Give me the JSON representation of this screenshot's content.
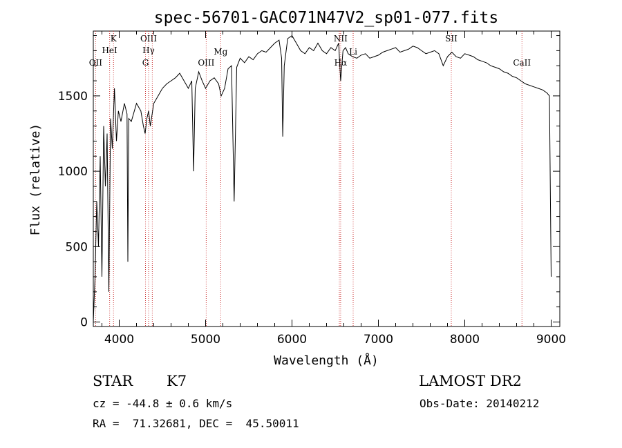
{
  "chart_data": {
    "type": "line",
    "title": "spec-56701-GAC071N47V2_sp01-077.fits",
    "xlabel": "Wavelength (Å)",
    "ylabel": "Flux (relative)",
    "xlim": [
      3700,
      9100
    ],
    "ylim": [
      -30,
      1930
    ],
    "xticks": [
      4000,
      5000,
      6000,
      7000,
      8000,
      9000
    ],
    "yticks": [
      0,
      500,
      1000,
      1500
    ],
    "grid": false,
    "series": [
      {
        "x": [
          3700,
          3720,
          3740,
          3760,
          3780,
          3800,
          3820,
          3840,
          3860,
          3880,
          3900,
          3920,
          3935,
          3945,
          3968,
          3990,
          4020,
          4060,
          4090,
          4100,
          4110,
          4140,
          4200,
          4250,
          4280,
          4300,
          4320,
          4340,
          4360,
          4400,
          4450,
          4500,
          4550,
          4600,
          4650,
          4700,
          4750,
          4800,
          4840,
          4861,
          4880,
          4920,
          4960,
          5000,
          5050,
          5100,
          5150,
          5180,
          5220,
          5260,
          5300,
          5330,
          5360,
          5400,
          5450,
          5500,
          5550,
          5600,
          5650,
          5700,
          5750,
          5800,
          5850,
          5880,
          5893,
          5910,
          5950,
          6000,
          6050,
          6100,
          6150,
          6200,
          6250,
          6300,
          6350,
          6400,
          6450,
          6500,
          6540,
          6563,
          6590,
          6620,
          6650,
          6700,
          6750,
          6800,
          6850,
          6900,
          6950,
          7000,
          7050,
          7100,
          7150,
          7200,
          7250,
          7300,
          7350,
          7400,
          7450,
          7500,
          7550,
          7600,
          7650,
          7700,
          7750,
          7800,
          7850,
          7900,
          7950,
          8000,
          8050,
          8100,
          8150,
          8200,
          8250,
          8300,
          8350,
          8400,
          8450,
          8500,
          8550,
          8600,
          8650,
          8700,
          8750,
          8800,
          8850,
          8900,
          8950,
          8980,
          9000
        ],
        "y": [
          0,
          300,
          800,
          500,
          1100,
          300,
          1300,
          900,
          1250,
          200,
          1350,
          1150,
          1400,
          1550,
          1200,
          1400,
          1330,
          1450,
          1380,
          400,
          1350,
          1330,
          1450,
          1400,
          1300,
          1250,
          1350,
          1400,
          1300,
          1450,
          1500,
          1550,
          1580,
          1600,
          1620,
          1650,
          1600,
          1550,
          1600,
          1000,
          1550,
          1660,
          1600,
          1550,
          1600,
          1620,
          1580,
          1500,
          1550,
          1680,
          1700,
          800,
          1690,
          1750,
          1720,
          1760,
          1740,
          1780,
          1800,
          1790,
          1820,
          1850,
          1870,
          1750,
          1230,
          1700,
          1880,
          1900,
          1850,
          1800,
          1780,
          1820,
          1800,
          1850,
          1800,
          1780,
          1820,
          1800,
          1850,
          1600,
          1800,
          1820,
          1780,
          1760,
          1750,
          1770,
          1780,
          1750,
          1760,
          1770,
          1790,
          1800,
          1810,
          1820,
          1790,
          1800,
          1810,
          1830,
          1820,
          1800,
          1780,
          1790,
          1800,
          1780,
          1700,
          1760,
          1790,
          1760,
          1750,
          1780,
          1770,
          1760,
          1740,
          1730,
          1720,
          1700,
          1690,
          1680,
          1660,
          1650,
          1630,
          1620,
          1600,
          1580,
          1570,
          1560,
          1550,
          1540,
          1520,
          1500,
          300
        ]
      }
    ],
    "line_marks": [
      {
        "wave": 3727,
        "label": "OII",
        "row": 3
      },
      {
        "wave": 3934,
        "label": "K",
        "row": 0
      },
      {
        "wave": 3889,
        "label": "HeI",
        "row": 1
      },
      {
        "wave": 4340,
        "label": "OIII",
        "row": 0
      },
      {
        "wave": 4340,
        "label": "Hγ",
        "row": 1
      },
      {
        "wave": 4304,
        "label": "G",
        "row": 3
      },
      {
        "wave": 5007,
        "label": "OIII",
        "row": 3
      },
      {
        "wave": 5175,
        "label": "Mg",
        "row": 2
      },
      {
        "wave": 6563,
        "label": "NII",
        "row": 0
      },
      {
        "wave": 6563,
        "label": "Hα",
        "row": 3
      },
      {
        "wave": 6708,
        "label": "Li",
        "row": 2
      },
      {
        "wave": 7844,
        "label": "SII",
        "row": 0
      },
      {
        "wave": 8662,
        "label": "CaII",
        "row": 3
      }
    ],
    "line_mark_color": "#cc3333",
    "extra_marks": [
      4383,
      6548
    ]
  },
  "info": {
    "class_label": "STAR",
    "subclass": "K7",
    "survey": "LAMOST DR2",
    "velocity": "cz = -44.8 ± 0.6 km/s",
    "obs_date": "Obs-Date: 20140212",
    "coords": "RA =  71.32681, DEC =  45.50011"
  }
}
